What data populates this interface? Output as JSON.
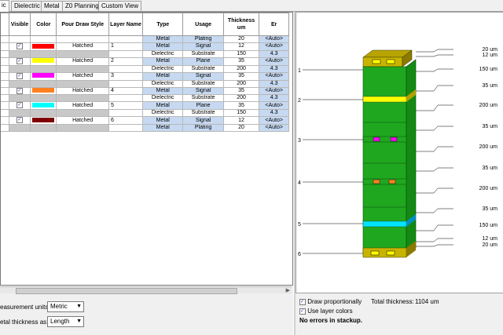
{
  "tabs": [
    "ic",
    "Dielectric",
    "Metal",
    "Z0 Planning",
    "Custom View"
  ],
  "columns": [
    "Visible",
    "Color",
    "Pour Draw Style",
    "Layer Name",
    "Type",
    "Usage",
    "Thickness um",
    "Er"
  ],
  "rows": [
    {
      "visible": false,
      "color": "",
      "pour": "",
      "layer": "",
      "type": "Metal",
      "usage": "Plating",
      "thickness": "20",
      "er": "<Auto>"
    },
    {
      "visible": true,
      "color": "#ff0000",
      "pour": "Hatched",
      "layer": "1",
      "type": "Metal",
      "usage": "Signal",
      "thickness": "12",
      "er": "<Auto>"
    },
    {
      "visible": false,
      "color": "gray",
      "pour": "",
      "layer": "",
      "type": "Dielectric",
      "usage": "Substrate",
      "thickness": "150",
      "er": "4.3"
    },
    {
      "visible": true,
      "color": "#ffff00",
      "pour": "Hatched",
      "layer": "2",
      "type": "Metal",
      "usage": "Plane",
      "thickness": "35",
      "er": "<Auto>"
    },
    {
      "visible": false,
      "color": "gray",
      "pour": "",
      "layer": "",
      "type": "Dielectric",
      "usage": "Substrate",
      "thickness": "200",
      "er": "4.3"
    },
    {
      "visible": true,
      "color": "#ff00ff",
      "pour": "Hatched",
      "layer": "3",
      "type": "Metal",
      "usage": "Signal",
      "thickness": "35",
      "er": "<Auto>"
    },
    {
      "visible": false,
      "color": "gray",
      "pour": "",
      "layer": "",
      "type": "Dielectric",
      "usage": "Substrate",
      "thickness": "200",
      "er": "4.3"
    },
    {
      "visible": true,
      "color": "#ff8020",
      "pour": "Hatched",
      "layer": "4",
      "type": "Metal",
      "usage": "Signal",
      "thickness": "35",
      "er": "<Auto>"
    },
    {
      "visible": false,
      "color": "gray",
      "pour": "",
      "layer": "",
      "type": "Dielectric",
      "usage": "Substrate",
      "thickness": "200",
      "er": "4.3"
    },
    {
      "visible": true,
      "color": "#00ffff",
      "pour": "Hatched",
      "layer": "5",
      "type": "Metal",
      "usage": "Plane",
      "thickness": "35",
      "er": "<Auto>"
    },
    {
      "visible": false,
      "color": "gray",
      "pour": "",
      "layer": "",
      "type": "Dielectric",
      "usage": "Substrate",
      "thickness": "150",
      "er": "4.3"
    },
    {
      "visible": true,
      "color": "#800000",
      "pour": "Hatched",
      "layer": "6",
      "type": "Metal",
      "usage": "Signal",
      "thickness": "12",
      "er": "<Auto>"
    },
    {
      "visible": false,
      "color": "gray",
      "pour": "",
      "layer": "",
      "type": "Metal",
      "usage": "Plating",
      "thickness": "20",
      "er": "<Auto>"
    }
  ],
  "options": {
    "units_label": "easurement units:",
    "units_value": "Metric",
    "thickness_label": "etal thickness as:",
    "thickness_value": "Length"
  },
  "stackup": {
    "layer_labels": [
      "1",
      "2",
      "3",
      "4",
      "5",
      "6"
    ],
    "dim_labels": [
      "20 um",
      "12 um",
      "150 um",
      "35 um",
      "200 um",
      "35 um",
      "200 um",
      "35 um",
      "200 um",
      "35 um",
      "150 um",
      "12 um",
      "20 um"
    ],
    "layer_colors": {
      "l2": "#ffff00",
      "l3": "#ff00ff",
      "l4": "#ff8020",
      "l5": "#00e5ff",
      "dielectric": "#1fa81f",
      "plating": "#c8b400"
    }
  },
  "bottom": {
    "draw_prop_label": "Draw proportionally",
    "use_colors_label": "Use layer colors",
    "total_label": "Total thickness:",
    "total_value": "1104 um",
    "status": "No errors in stackup."
  }
}
